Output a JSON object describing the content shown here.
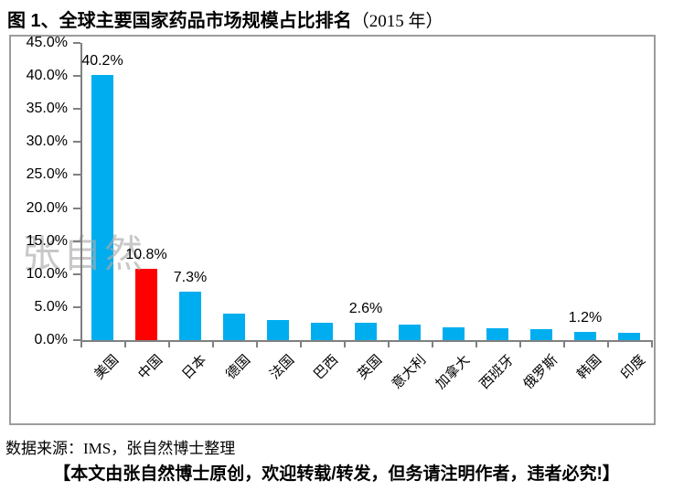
{
  "title": {
    "main": "图 1、全球主要国家药品市场规模占比排名",
    "year": "（2015 年）"
  },
  "watermark": "张自然",
  "source_line": "数据来源：IMS，张自然博士整理",
  "footer_line": "【本文由张自然博士原创，欢迎转载/转发，但务请注明作者，违者必究!】",
  "colors": {
    "bar": "#00AEEF",
    "highlight_bar": "#FF0000",
    "axis": "#808080",
    "box_border": "#9c9c9c",
    "text": "#000000",
    "watermark": "#aaaaaa"
  },
  "chart_data": {
    "type": "bar",
    "title": "全球主要国家药品市场规模占比排名（2015年）",
    "categories": [
      "美国",
      "中国",
      "日本",
      "德国",
      "法国",
      "巴西",
      "英国",
      "意大利",
      "加拿大",
      "西班牙",
      "俄罗斯",
      "韩国",
      "印度"
    ],
    "values": [
      40.2,
      10.8,
      7.3,
      4.0,
      3.0,
      2.7,
      2.6,
      2.4,
      1.9,
      1.8,
      1.7,
      1.2,
      1.1
    ],
    "data_labels": [
      "40.2%",
      "10.8%",
      "7.3%",
      null,
      null,
      null,
      "2.6%",
      null,
      null,
      null,
      null,
      "1.2%",
      null
    ],
    "highlight_index": 1,
    "xlabel": "",
    "ylabel": "",
    "ylim": [
      0,
      45
    ],
    "ytick_step": 5,
    "ytick_labels": [
      "0.0%",
      "5.0%",
      "10.0%",
      "15.0%",
      "20.0%",
      "25.0%",
      "30.0%",
      "35.0%",
      "40.0%",
      "45.0%"
    ],
    "grid": false,
    "legend": null
  }
}
